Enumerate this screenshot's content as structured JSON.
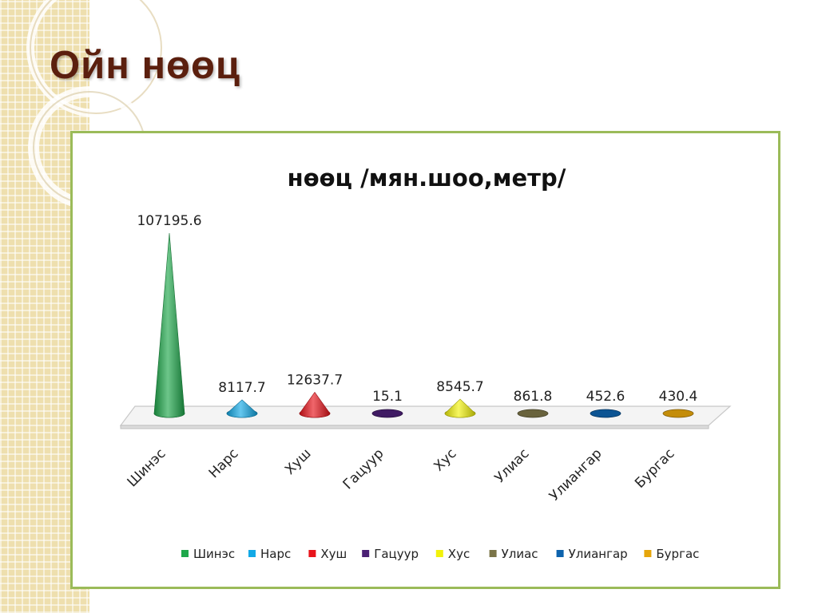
{
  "slide": {
    "title": "Ойн нөөц"
  },
  "chart_data": {
    "type": "bar",
    "title": "нөөц /мян.шоо,метр/",
    "xlabel": "",
    "ylabel": "",
    "categories": [
      "Шинэс",
      "Нарс",
      "Хуш",
      "Гацуур",
      "Хус",
      "Улиас",
      "Улиангар",
      "Бургас"
    ],
    "values": [
      107195.6,
      8117.7,
      12637.7,
      15.1,
      8545.7,
      861.8,
      452.6,
      430.4
    ],
    "value_labels": [
      "107195.6",
      "8117.7",
      "12637.7",
      "15.1",
      "8545.7",
      "861.8",
      "452.6",
      "430.4"
    ],
    "colors": [
      "#1fa84b",
      "#12a9e6",
      "#e8141b",
      "#4a1f74",
      "#f2f20a",
      "#7b7548",
      "#0e63ad",
      "#e6a60c"
    ],
    "legend": {
      "placement": "bottom",
      "entries": [
        "Шинэс",
        "Нарс",
        "Хуш",
        "Гацуур",
        "Хус",
        "Улиас",
        "Улиангар",
        "Бургас"
      ]
    },
    "grid": false,
    "axis_visible": false
  }
}
